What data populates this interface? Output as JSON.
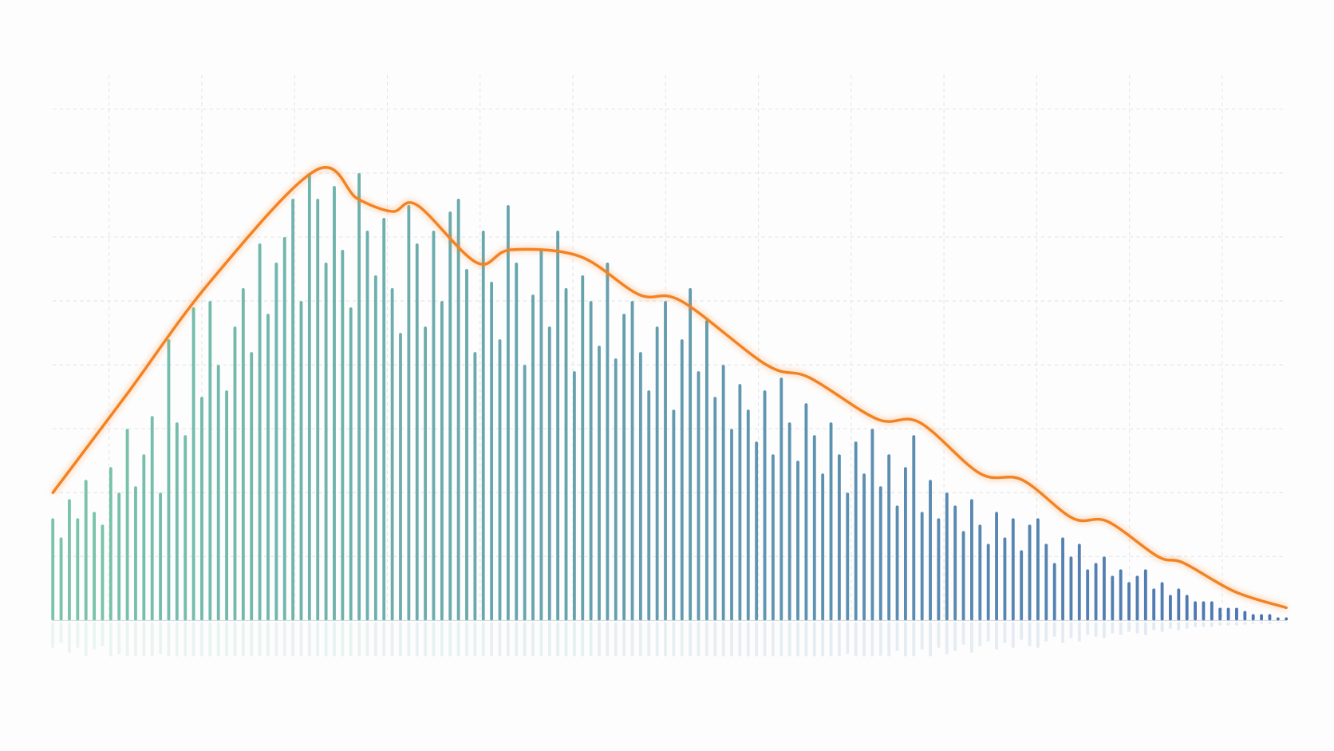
{
  "chart_data": {
    "type": "bar",
    "xlim": [
      1,
      150
    ],
    "ylim": [
      0,
      8
    ],
    "yticks": [
      0,
      1,
      2,
      3,
      4,
      5,
      6,
      7,
      8
    ],
    "grid": true,
    "series": [
      {
        "type": "bar",
        "colors": [
          "#62bb9c",
          "#2d5aa6"
        ],
        "x": [
          1,
          2,
          3,
          4,
          5,
          6,
          7,
          8,
          9,
          10,
          11,
          12,
          13,
          14,
          15,
          16,
          17,
          18,
          19,
          20,
          21,
          22,
          23,
          24,
          25,
          26,
          27,
          28,
          29,
          30,
          31,
          32,
          33,
          34,
          35,
          36,
          37,
          38,
          39,
          40,
          41,
          42,
          43,
          44,
          45,
          46,
          47,
          48,
          49,
          50,
          51,
          52,
          53,
          54,
          55,
          56,
          57,
          58,
          59,
          60,
          61,
          62,
          63,
          64,
          65,
          66,
          67,
          68,
          69,
          70,
          71,
          72,
          73,
          74,
          75,
          76,
          77,
          78,
          79,
          80,
          81,
          82,
          83,
          84,
          85,
          86,
          87,
          88,
          89,
          90,
          91,
          92,
          93,
          94,
          95,
          96,
          97,
          98,
          99,
          100,
          101,
          102,
          103,
          104,
          105,
          106,
          107,
          108,
          109,
          110,
          111,
          112,
          113,
          114,
          115,
          116,
          117,
          118,
          119,
          120,
          121,
          122,
          123,
          124,
          125,
          126,
          127,
          128,
          129,
          130,
          131,
          132,
          133,
          134,
          135,
          136,
          137,
          138,
          139,
          140,
          141,
          142,
          143,
          144,
          145,
          146,
          147,
          148,
          149,
          150
        ],
        "values": [
          1.6,
          1.3,
          1.9,
          1.6,
          2.2,
          1.7,
          1.5,
          2.4,
          2.0,
          3.0,
          2.1,
          2.6,
          3.2,
          2.0,
          4.4,
          3.1,
          2.9,
          4.9,
          3.5,
          5.0,
          4.0,
          3.6,
          4.6,
          5.2,
          4.2,
          5.9,
          4.8,
          5.6,
          6.0,
          6.6,
          5.0,
          7.0,
          6.6,
          5.6,
          6.8,
          5.8,
          4.9,
          7.0,
          6.1,
          5.4,
          6.3,
          5.2,
          4.5,
          6.5,
          5.9,
          4.6,
          6.1,
          5.0,
          6.4,
          6.6,
          5.5,
          4.2,
          6.1,
          5.3,
          4.4,
          6.5,
          5.6,
          4.0,
          5.1,
          5.8,
          4.6,
          6.1,
          5.2,
          3.9,
          5.4,
          5.0,
          4.3,
          5.6,
          4.1,
          4.8,
          5.0,
          4.2,
          3.6,
          4.6,
          5.0,
          3.3,
          4.4,
          5.2,
          3.9,
          4.7,
          3.5,
          4.0,
          3.0,
          3.7,
          3.3,
          2.8,
          3.6,
          2.6,
          3.8,
          3.1,
          2.5,
          3.4,
          2.9,
          2.3,
          3.1,
          2.6,
          2.0,
          2.8,
          2.3,
          3.0,
          2.1,
          2.6,
          1.8,
          2.4,
          2.9,
          1.7,
          2.2,
          1.6,
          2.0,
          1.8,
          1.4,
          1.9,
          1.5,
          1.2,
          1.7,
          1.3,
          1.6,
          1.1,
          1.5,
          1.6,
          1.2,
          0.9,
          1.3,
          1.0,
          1.2,
          0.8,
          0.9,
          1.0,
          0.7,
          0.8,
          0.6,
          0.7,
          0.8,
          0.5,
          0.6,
          0.4,
          0.5,
          0.4,
          0.3,
          0.3,
          0.3,
          0.2,
          0.2,
          0.2,
          0.15,
          0.1,
          0.1,
          0.1,
          0.05,
          0.05
        ]
      },
      {
        "type": "line",
        "color": "#f28222",
        "x": [
          1,
          10,
          20,
          32.7,
          37.8,
          42,
          45,
          52.2,
          56.3,
          64.6,
          71.8,
          76.9,
          87.2,
          92.4,
          100.6,
          105.7,
          113,
          118.1,
          124.2,
          128.4,
          134.5,
          137.6,
          143.8,
          150
        ],
        "values": [
          2.0,
          3.55,
          5.3,
          7.04,
          6.6,
          6.4,
          6.5,
          5.6,
          5.8,
          5.7,
          5.1,
          5.0,
          4.0,
          3.8,
          3.15,
          3.1,
          2.3,
          2.2,
          1.6,
          1.55,
          1.0,
          0.9,
          0.45,
          0.2
        ]
      }
    ]
  }
}
